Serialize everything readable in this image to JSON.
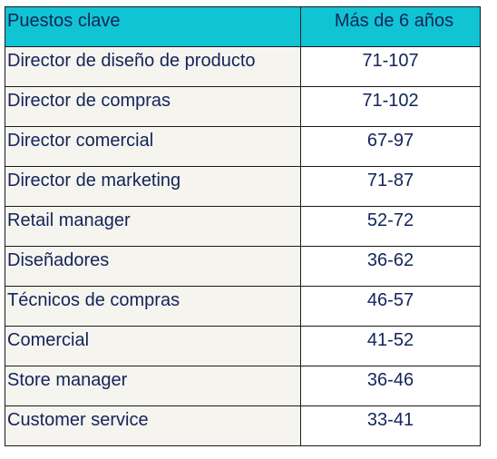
{
  "table": {
    "headers": {
      "role": "Puestos clave",
      "range": "Más de 6 años"
    },
    "rows": [
      {
        "role": "Director de diseño de producto",
        "range": "71-107"
      },
      {
        "role": "Director de compras",
        "range": "71-102"
      },
      {
        "role": "Director comercial",
        "range": "67-97"
      },
      {
        "role": "Director de marketing",
        "range": "71-87"
      },
      {
        "role": "Retail manager",
        "range": "52-72"
      },
      {
        "role": "Diseñadores",
        "range": "36-62"
      },
      {
        "role": "Técnicos de compras",
        "range": "46-57"
      },
      {
        "role": "Comercial",
        "range": "41-52"
      },
      {
        "role": "Store manager",
        "range": "36-46"
      },
      {
        "role": "Customer service",
        "range": "33-41"
      }
    ]
  },
  "colors": {
    "header_bg": "#10c4d3",
    "role_cell_bg": "#f6f4ef",
    "text": "#12245a"
  }
}
